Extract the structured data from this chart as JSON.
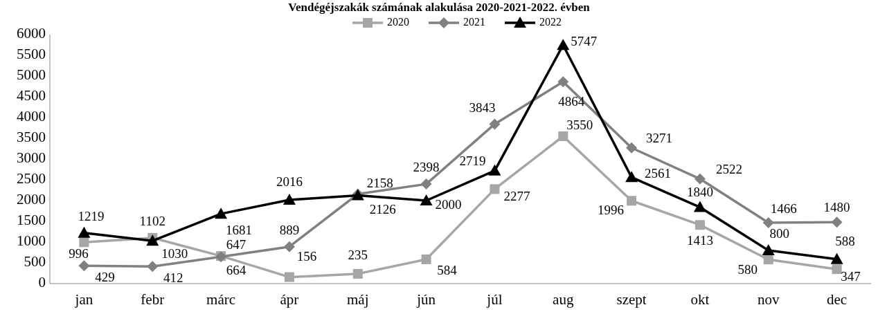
{
  "chart_data": {
    "type": "line",
    "title": "Vendégéjszakák számának alakulása 2020-2021-2022. évben",
    "categories": [
      "jan",
      "febr",
      "márc",
      "ápr",
      "máj",
      "jún",
      "júl",
      "aug",
      "szept",
      "okt",
      "nov",
      "dec"
    ],
    "series": [
      {
        "name": "2020",
        "color": "#a6a6a6",
        "marker": "square",
        "values": [
          996,
          1102,
          664,
          156,
          235,
          584,
          2277,
          3550,
          1996,
          1413,
          580,
          347
        ]
      },
      {
        "name": "2021",
        "color": "#808080",
        "marker": "diamond",
        "values": [
          429,
          412,
          647,
          889,
          2158,
          2398,
          3843,
          4864,
          3271,
          2522,
          1466,
          1480
        ]
      },
      {
        "name": "2022",
        "color": "#000000",
        "marker": "triangle",
        "values": [
          1219,
          1030,
          1681,
          2016,
          2126,
          2000,
          2719,
          5747,
          2561,
          1840,
          800,
          588
        ]
      }
    ],
    "ylim": [
      0,
      6000
    ],
    "yticks": [
      0,
      500,
      1000,
      1500,
      2000,
      2500,
      3000,
      3500,
      4000,
      4500,
      5000,
      5500,
      6000
    ],
    "grid": false,
    "legend": "top",
    "data_labels": true,
    "line_style": "solid"
  }
}
